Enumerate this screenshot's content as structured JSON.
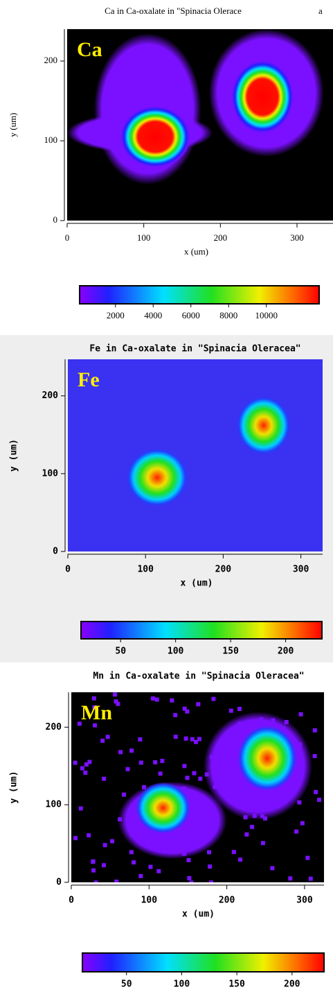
{
  "chart_data": [
    {
      "type": "heatmap",
      "title": "Ca in Ca-oxalate in \"Spinacia Olerace",
      "title_overflow": "a",
      "label": "Ca",
      "x_label": "x (um)",
      "y_label": "y (um)",
      "xlim": [
        0,
        347
      ],
      "ylim": [
        0,
        240
      ],
      "xticks": [
        0,
        100,
        200,
        300
      ],
      "yticks": [
        0,
        100,
        200
      ],
      "background": "#000000",
      "colormap": "jet",
      "colorbar": {
        "lim": [
          100,
          12800
        ],
        "ticks": [
          2000,
          4000,
          6000,
          8000,
          10000
        ]
      }
    },
    {
      "type": "heatmap",
      "title": "Fe in Ca-oxalate in \"Spinacia Oleracea\"",
      "label": "Fe",
      "x_label": "x (um)",
      "y_label": "y (um)",
      "xlim": [
        0,
        328
      ],
      "ylim": [
        0,
        247
      ],
      "xticks": [
        0,
        100,
        200,
        300
      ],
      "yticks": [
        0,
        100,
        200
      ],
      "background": "#3a32f0",
      "colormap": "jet",
      "colorbar": {
        "lim": [
          14,
          233
        ],
        "ticks": [
          50,
          100,
          150,
          200
        ]
      }
    },
    {
      "type": "heatmap",
      "title": "Mn in Ca-oxalate in \"Spinacia Oleracea\"",
      "label": "Mn",
      "x_label": "x (um)",
      "y_label": "y (um)",
      "xlim": [
        0,
        325
      ],
      "ylim": [
        0,
        245
      ],
      "xticks": [
        0,
        100,
        200,
        300
      ],
      "yticks": [
        0,
        100,
        200
      ],
      "background": "#000000",
      "colormap": "jet",
      "colorbar": {
        "lim": [
          10,
          229
        ],
        "ticks": [
          50,
          100,
          150,
          200
        ]
      }
    }
  ]
}
